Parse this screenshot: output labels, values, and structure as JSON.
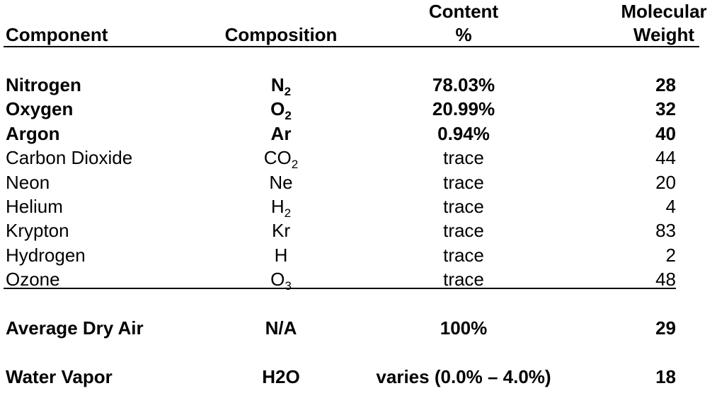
{
  "header": {
    "columns": [
      [
        "Component"
      ],
      [
        "Composition"
      ],
      [
        "Content",
        "%"
      ],
      [
        "Molecular",
        "Weight"
      ]
    ]
  },
  "table": {
    "rows": [
      {
        "component": "Nitrogen",
        "composition": {
          "text": "N",
          "sub": "2"
        },
        "content": "78.03%",
        "weight": 28,
        "bold": true
      },
      {
        "component": "Oxygen",
        "composition": {
          "text": "O",
          "sub": "2"
        },
        "content": "20.99%",
        "weight": 32,
        "bold": true
      },
      {
        "component": "Argon",
        "composition": "Ar",
        "content": "0.94%",
        "weight": 40,
        "bold": true
      },
      {
        "component": "Carbon Dioxide",
        "composition": {
          "text": "CO",
          "sub": "2"
        },
        "content": "trace",
        "weight": 44,
        "bold": false
      },
      {
        "component": "Neon",
        "composition": "Ne",
        "content": "trace",
        "weight": 20,
        "bold": false
      },
      {
        "component": "Helium",
        "composition": {
          "text": "H",
          "sub": "2"
        },
        "content": "trace",
        "weight": 4,
        "bold": false
      },
      {
        "component": "Krypton",
        "composition": "Kr",
        "content": "trace",
        "weight": 83,
        "bold": false
      },
      {
        "component": "Hydrogen",
        "composition": "H",
        "content": "trace",
        "weight": 2,
        "bold": false
      },
      {
        "component": "Ozone",
        "composition": {
          "text": "O",
          "sub": "3"
        },
        "content": "trace",
        "weight": 48,
        "bold": false
      }
    ]
  },
  "totals": {
    "rows": [
      {
        "component": "Average Dry Air",
        "composition": "N/A",
        "content": "100%",
        "weight": 29,
        "bold": true
      },
      {
        "component": "Water Vapor",
        "composition": "H2O",
        "content": "varies (0.0% – 4.0%)",
        "weight": 18,
        "bold": true
      }
    ]
  }
}
